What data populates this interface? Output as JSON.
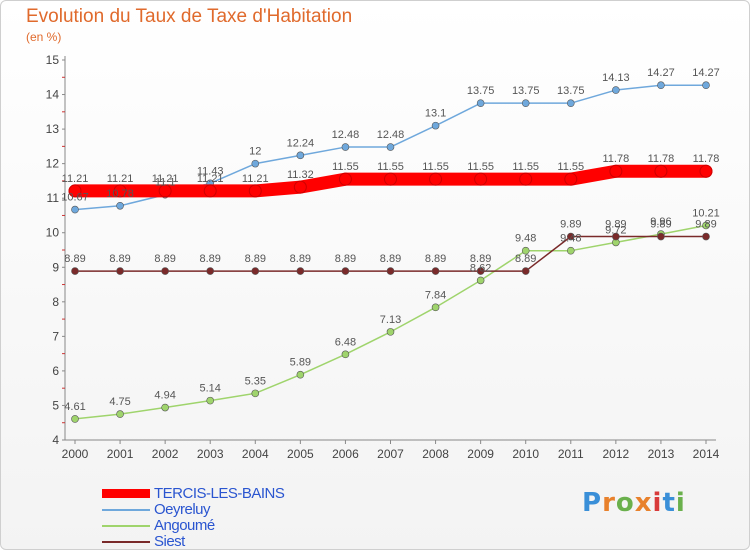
{
  "header": {
    "title": "Evolution du Taux de Taxe d'Habitation",
    "unit": "(en %)"
  },
  "logo": {
    "text": "Proxiti"
  },
  "chart_data": {
    "type": "line",
    "title": "Evolution du Taux de Taxe d'Habitation",
    "ylabel": "(en %)",
    "ylim": [
      4,
      15
    ],
    "yticks": [
      4,
      5,
      6,
      7,
      8,
      9,
      10,
      11,
      12,
      13,
      14,
      15
    ],
    "x": [
      "2000",
      "2001",
      "2002",
      "2003",
      "2004",
      "2005",
      "2006",
      "2007",
      "2008",
      "2009",
      "2010",
      "2011",
      "2012",
      "2013",
      "2014"
    ],
    "grid": false,
    "legend_position": "bottom-left",
    "series": [
      {
        "name": "TERCIS-LES-BAINS",
        "color": "#ff0000",
        "values": [
          11.21,
          11.21,
          11.21,
          11.21,
          11.21,
          11.32,
          11.55,
          11.55,
          11.55,
          11.55,
          11.55,
          11.55,
          11.78,
          11.78,
          11.78
        ],
        "labels": [
          "11.21",
          "11.21",
          "11.21",
          "11.21",
          "11.21",
          "11.32",
          "11.55",
          "11.55",
          "11.55",
          "11.55",
          "11.55",
          "11.55",
          "11.78",
          "11.78",
          "11.78"
        ]
      },
      {
        "name": "Oeyreluy",
        "color": "#6fa8dc",
        "values": [
          10.67,
          10.78,
          11.1,
          11.43,
          12,
          12.24,
          12.48,
          12.48,
          13.1,
          13.75,
          13.75,
          13.75,
          14.13,
          14.27,
          14.27
        ],
        "labels": [
          "10.67",
          "10.78",
          "11.1",
          "11.43",
          "12",
          "12.24",
          "12.48",
          "12.48",
          "13.1",
          "13.75",
          "13.75",
          "13.75",
          "14.13",
          "14.27",
          "14.27"
        ]
      },
      {
        "name": "Angoumé",
        "color": "#9fd46c",
        "values": [
          4.61,
          4.75,
          4.94,
          5.14,
          5.35,
          5.89,
          6.48,
          7.13,
          7.84,
          8.62,
          9.48,
          9.48,
          9.72,
          9.96,
          10.21
        ],
        "labels": [
          "4.61",
          "4.75",
          "4.94",
          "5.14",
          "5.35",
          "5.89",
          "6.48",
          "7.13",
          "7.84",
          "8.62",
          "9.48",
          "9.48",
          "9.72",
          "9.96",
          "10.21"
        ]
      },
      {
        "name": "Siest",
        "color": "#7a2a2a",
        "values": [
          8.89,
          8.89,
          8.89,
          8.89,
          8.89,
          8.89,
          8.89,
          8.89,
          8.89,
          8.89,
          8.89,
          9.89,
          9.89,
          9.89,
          9.89
        ],
        "labels": [
          "8.89",
          "8.89",
          "8.89",
          "8.89",
          "8.89",
          "8.89",
          "8.89",
          "8.89",
          "8.89",
          "8.89",
          "8.89",
          "9.89",
          "9.89",
          "9.89",
          "9.89"
        ]
      }
    ]
  }
}
